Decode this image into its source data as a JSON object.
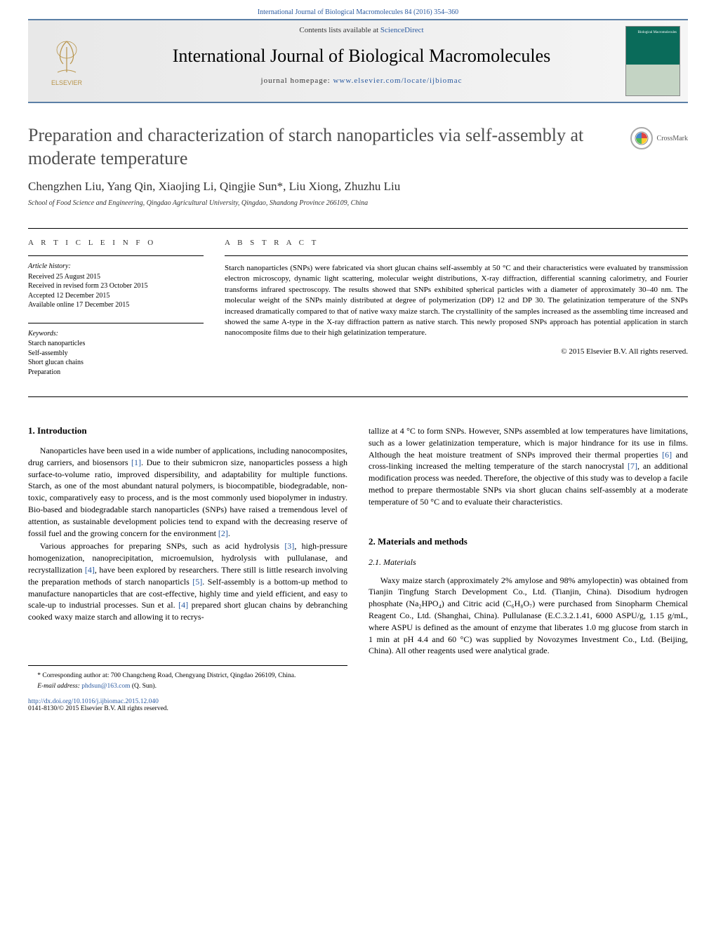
{
  "header": {
    "citation_prefix": "International Journal of Biological Macromolecules 84 (2016) 354–360",
    "contents_prefix": "Contents lists available at ",
    "contents_link": "ScienceDirect",
    "journal_title": "International Journal of Biological Macromolecules",
    "homepage_prefix": "journal homepage: ",
    "homepage_link": "www.elsevier.com/locate/ijbiomac",
    "cover_text": "Biological Macromolecules",
    "publisher": "ELSEVIER",
    "crossmark": "CrossMark"
  },
  "article": {
    "title": "Preparation and characterization of starch nanoparticles via self-assembly at moderate temperature",
    "authors": "Chengzhen Liu, Yang Qin, Xiaojing Li, Qingjie Sun*, Liu Xiong, Zhuzhu Liu",
    "affiliation": "School of Food Science and Engineering, Qingdao Agricultural University, Qingdao, Shandong Province 266109, China"
  },
  "info": {
    "head": "A R T I C L E   I N F O",
    "history_label": "Article history:",
    "received": "Received 25 August 2015",
    "revised": "Received in revised form 23 October 2015",
    "accepted": "Accepted 12 December 2015",
    "online": "Available online 17 December 2015",
    "kw_label": "Keywords:",
    "kw1": "Starch nanoparticles",
    "kw2": "Self-assembly",
    "kw3": "Short glucan chains",
    "kw4": "Preparation"
  },
  "abstract": {
    "head": "A B S T R A C T",
    "text": "Starch nanoparticles (SNPs) were fabricated via short glucan chains self-assembly at 50 °C and their characteristics were evaluated by transmission electron microscopy, dynamic light scattering, molecular weight distributions, X-ray diffraction, differential scanning calorimetry, and Fourier transforms infrared spectroscopy. The results showed that SNPs exhibited spherical particles with a diameter of approximately 30–40 nm. The molecular weight of the SNPs mainly distributed at degree of polymerization (DP) 12 and DP 30. The gelatinization temperature of the SNPs increased dramatically compared to that of native waxy maize starch. The crystallinity of the samples increased as the assembling time increased and showed the same A-type in the X-ray diffraction pattern as native starch. This newly proposed SNPs approach has potential application in starch nanocomposite films due to their high gelatinization temperature.",
    "copyright": "© 2015 Elsevier B.V. All rights reserved."
  },
  "body": {
    "intro_head": "1. Introduction",
    "intro_p1": "Nanoparticles have been used in a wide number of applications, including nanocomposites, drug carriers, and biosensors [1]. Due to their submicron size, nanoparticles possess a high surface-to-volume ratio, improved dispersibility, and adaptability for multiple functions. Starch, as one of the most abundant natural polymers, is biocompatible, biodegradable, non-toxic, comparatively easy to process, and is the most commonly used biopolymer in industry. Bio-based and biodegradable starch nanoparticles (SNPs) have raised a tremendous level of attention, as sustainable development policies tend to expand with the decreasing reserve of fossil fuel and the growing concern for the environment [2].",
    "intro_p2": "Various approaches for preparing SNPs, such as acid hydrolysis [3], high-pressure homogenization, nanoprecipitation, microemulsion, hydrolysis with pullulanase, and recrystallization [4], have been explored by researchers. There still is little research involving the preparation methods of starch nanoparticls [5]. Self-assembly is a bottom-up method to manufacture nanoparticles that are cost-effective, highly time and yield efficient, and easy to scale-up to industrial processes. Sun et al. [4] prepared short glucan chains by debranching cooked waxy maize starch and allowing it to recrys-",
    "intro_p3": "tallize at 4 °C to form SNPs. However, SNPs assembled at low temperatures have limitations, such as a lower gelatinization temperature, which is major hindrance for its use in films. Although the heat moisture treatment of SNPs improved their thermal properties [6] and cross-linking increased the melting temperature of the starch nanocrystal [7], an additional modification process was needed. Therefore, the objective of this study was to develop a facile method to prepare thermostable SNPs via short glucan chains self-assembly at a moderate temperature of 50 °C and to evaluate their characteristics.",
    "mm_head": "2. Materials and methods",
    "mat_head": "2.1. Materials",
    "mat_p": "Waxy maize starch (approximately 2% amylose and 98% amylopectin) was obtained from Tianjin Tingfung Starch Development Co., Ltd. (Tianjin, China). Disodium hydrogen phosphate (Na₂HPO₄) and Citric acid (C₆H₈O₇) were purchased from Sinopharm Chemical Reagent Co., Ltd. (Shanghai, China). Pullulanase (E.C.3.2.1.41, 6000 ASPU/g, 1.15 g/mL, where ASPU is defined as the amount of enzyme that liberates 1.0 mg glucose from starch in 1 min at pH 4.4 and 60 °C) was supplied by Novozymes Investment Co., Ltd. (Beijing, China). All other reagents used were analytical grade."
  },
  "footer": {
    "corr": "* Corresponding author at: 700 Changcheng Road, Chengyang District, Qingdao 266109, China.",
    "email_label": "E-mail address: ",
    "email": "phdsun@163.com",
    "email_suffix": " (Q. Sun).",
    "doi": "http://dx.doi.org/10.1016/j.ijbiomac.2015.12.040",
    "issn": "0141-8130/© 2015 Elsevier B.V. All rights reserved."
  },
  "colors": {
    "link": "#2a5aa0",
    "rule": "#5b7fa6",
    "title_gray": "#505050"
  }
}
